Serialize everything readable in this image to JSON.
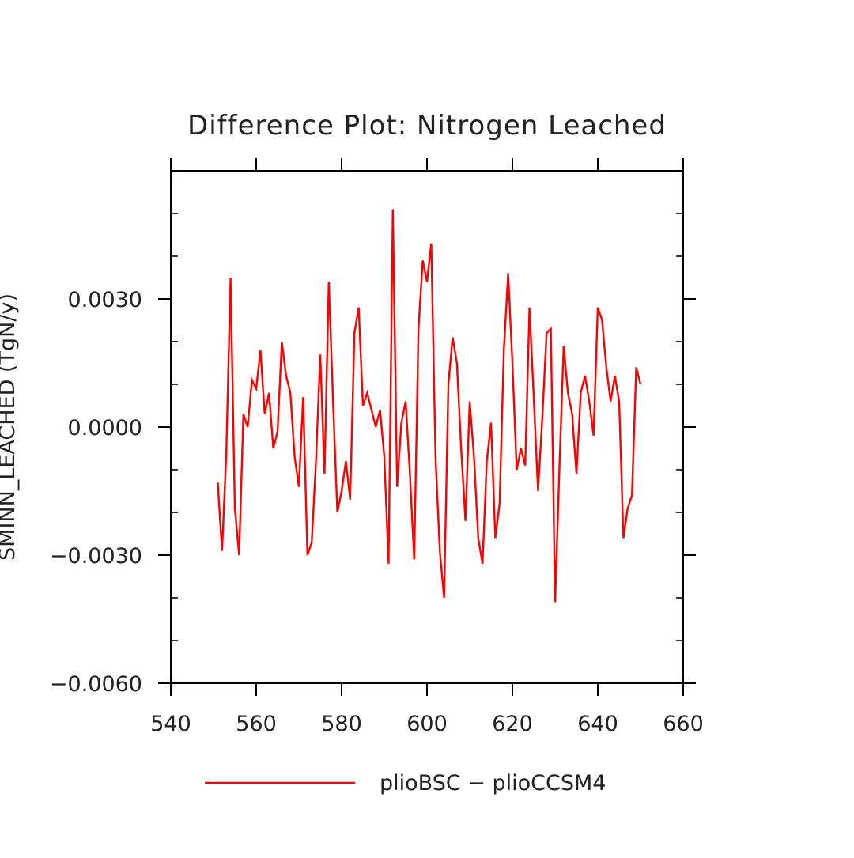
{
  "chart_data": {
    "type": "line",
    "title": "Difference Plot: Nitrogen Leached",
    "xlabel": "",
    "ylabel": "SMINN_LEACHED   (TgN/y)",
    "xlim": [
      540,
      660
    ],
    "ylim": [
      -0.006,
      0.006
    ],
    "x_ticks": [
      {
        "value": 540,
        "label": "540"
      },
      {
        "value": 560,
        "label": "560"
      },
      {
        "value": 580,
        "label": "580"
      },
      {
        "value": 600,
        "label": "600"
      },
      {
        "value": 620,
        "label": "620"
      },
      {
        "value": 640,
        "label": "640"
      },
      {
        "value": 660,
        "label": "660"
      }
    ],
    "y_ticks": [
      {
        "value": -0.006,
        "label": "−0.0060"
      },
      {
        "value": -0.003,
        "label": "−0.0030"
      },
      {
        "value": 0.0,
        "label": "0.0000"
      },
      {
        "value": 0.003,
        "label": "0.0030"
      }
    ],
    "legend": {
      "placement": "bottom"
    },
    "grid": false,
    "series": [
      {
        "name": "plioBSC − plioCCSM4",
        "color": "#ff0000",
        "x": [
          551,
          552,
          553,
          554,
          555,
          556,
          557,
          558,
          559,
          560,
          561,
          562,
          563,
          564,
          565,
          566,
          567,
          568,
          569,
          570,
          571,
          572,
          573,
          574,
          575,
          576,
          577,
          578,
          579,
          580,
          581,
          582,
          583,
          584,
          585,
          586,
          587,
          588,
          589,
          590,
          591,
          592,
          593,
          594,
          595,
          596,
          597,
          598,
          599,
          600,
          601,
          602,
          603,
          604,
          605,
          606,
          607,
          608,
          609,
          610,
          611,
          612,
          613,
          614,
          615,
          616,
          617,
          618,
          619,
          620,
          621,
          622,
          623,
          624,
          625,
          626,
          627,
          628,
          629,
          630,
          631,
          632,
          633,
          634,
          635,
          636,
          637,
          638,
          639,
          640,
          641,
          642,
          643,
          644,
          645,
          646,
          647,
          648,
          649,
          650
        ],
        "y": [
          -0.0013,
          -0.0029,
          -0.0006,
          0.0035,
          -0.0019,
          -0.003,
          0.0003,
          0.0,
          0.0011,
          0.0009,
          0.0018,
          0.0003,
          0.0008,
          -0.0005,
          -0.0001,
          0.002,
          0.0012,
          0.0008,
          -0.0007,
          -0.0014,
          0.0007,
          -0.003,
          -0.0027,
          -0.0008,
          0.0017,
          -0.0011,
          0.0034,
          0.0006,
          -0.002,
          -0.0015,
          -0.0008,
          -0.0017,
          0.0022,
          0.0028,
          0.0005,
          0.0008,
          0.0004,
          0.0,
          0.0004,
          -0.0007,
          -0.0032,
          0.0051,
          -0.0014,
          0.0001,
          0.0006,
          -0.0011,
          -0.0031,
          0.0023,
          0.0039,
          0.0034,
          0.0043,
          -0.0007,
          -0.0029,
          -0.004,
          0.001,
          0.0021,
          0.0015,
          -0.0005,
          -0.0022,
          0.0006,
          -0.0007,
          -0.0026,
          -0.0032,
          -0.0008,
          0.0001,
          -0.0026,
          -0.0018,
          0.0018,
          0.0036,
          0.0015,
          -0.001,
          -0.0005,
          -0.0009,
          0.0028,
          0.0007,
          -0.0015,
          0.0002,
          0.0022,
          0.0023,
          -0.0041,
          -0.001,
          0.0019,
          0.0008,
          0.0003,
          -0.0011,
          0.0008,
          0.0012,
          0.0006,
          -0.0002,
          0.0028,
          0.0025,
          0.0014,
          0.0006,
          0.0012,
          0.0006,
          -0.0026,
          -0.0019,
          -0.0016,
          0.0014,
          0.001
        ]
      }
    ]
  }
}
